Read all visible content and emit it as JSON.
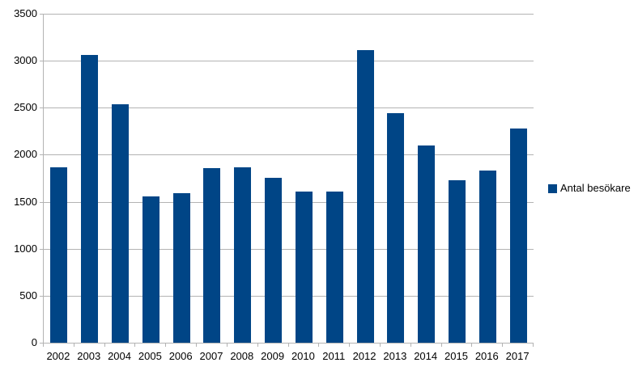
{
  "chart_data": {
    "type": "bar",
    "title": "",
    "xlabel": "",
    "ylabel": "",
    "categories": [
      "2002",
      "2003",
      "2004",
      "2005",
      "2006",
      "2007",
      "2008",
      "2009",
      "2010",
      "2011",
      "2012",
      "2013",
      "2014",
      "2015",
      "2016",
      "2017"
    ],
    "series": [
      {
        "name": "Antal besökare",
        "values": [
          1870,
          3060,
          2540,
          1560,
          1590,
          1855,
          1870,
          1755,
          1605,
          1605,
          3110,
          2440,
          2100,
          1730,
          1835,
          2275
        ]
      }
    ],
    "ylim": [
      0,
      3500
    ],
    "ytick_step": 500,
    "grid": true,
    "legend_position": "right",
    "colors": {
      "bar": "#004586",
      "grid": "#b3b3b3",
      "axis": "#b3b3b3",
      "text": "#000000",
      "background": "#ffffff"
    }
  }
}
